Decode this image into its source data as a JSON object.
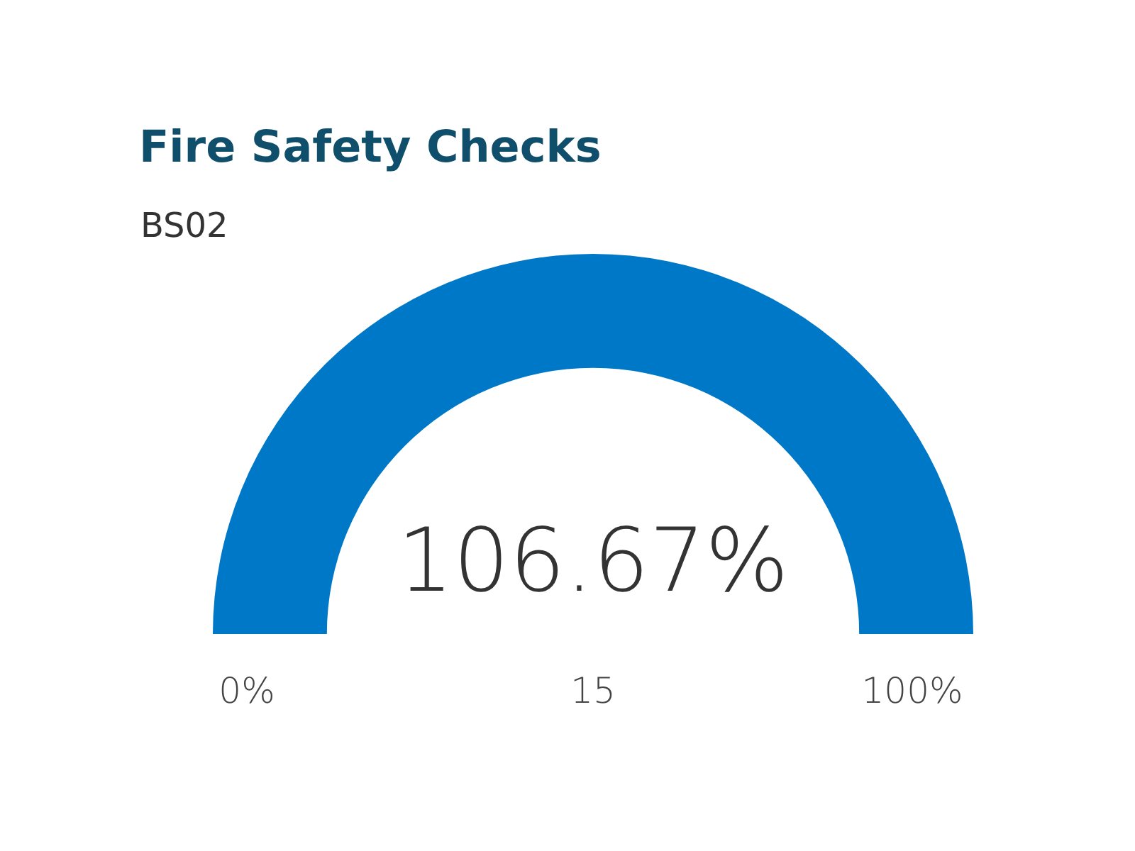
{
  "chart_data": {
    "type": "pie",
    "title": "Fire Safety Checks",
    "subtitle": "BS02",
    "categories": [
      null
    ],
    "values": [
      100
    ],
    "colors": [
      "#0078c8"
    ],
    "annotations": [
      "106.67%",
      "0%",
      "15",
      "100%"
    ],
    "legend": false
  }
}
